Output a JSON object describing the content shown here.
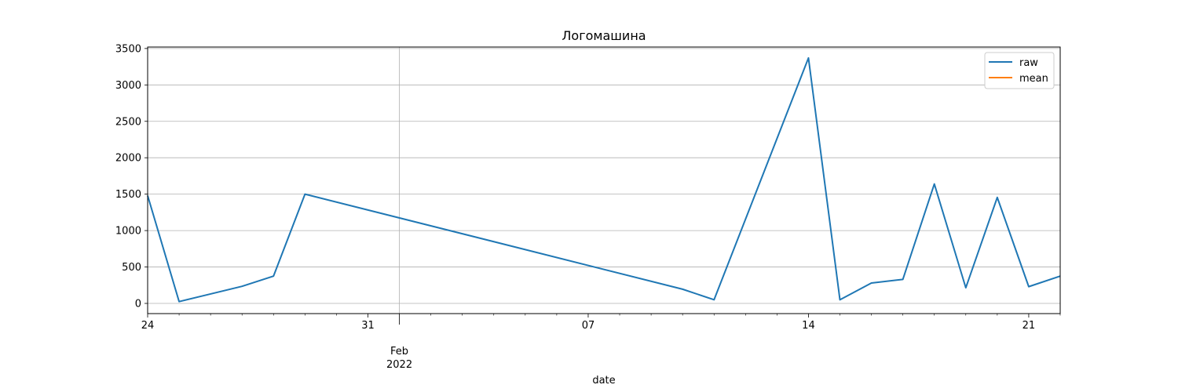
{
  "chart_data": {
    "type": "line",
    "title": "Логомашина",
    "xlabel": "date",
    "ylabel": "",
    "ylim": [
      -140,
      3520
    ],
    "xlim": [
      "2022-01-24",
      "2022-02-22"
    ],
    "grid": true,
    "legend_position": "top-right",
    "y_ticks": [
      0,
      500,
      1000,
      1500,
      2000,
      2500,
      3000,
      3500
    ],
    "x_major_ticks": [
      {
        "date": "2022-01-24",
        "label": "24",
        "sublabel": ""
      },
      {
        "date": "2022-01-31",
        "label": "31",
        "sublabel": ""
      },
      {
        "date": "2022-02-01",
        "label": "Feb",
        "sublabel": "2022"
      },
      {
        "date": "2022-02-07",
        "label": "07",
        "sublabel": ""
      },
      {
        "date": "2022-02-14",
        "label": "14",
        "sublabel": ""
      },
      {
        "date": "2022-02-21",
        "label": "21",
        "sublabel": ""
      }
    ],
    "x_gridline_dates": [
      "2022-02-01"
    ],
    "series": [
      {
        "name": "raw",
        "color": "#1f77b4",
        "points": [
          {
            "x": "2022-01-24",
            "y": 1480
          },
          {
            "x": "2022-01-25",
            "y": 25
          },
          {
            "x": "2022-01-27",
            "y": 235
          },
          {
            "x": "2022-01-28",
            "y": 375
          },
          {
            "x": "2022-01-29",
            "y": 1500
          },
          {
            "x": "2022-02-10",
            "y": 195
          },
          {
            "x": "2022-02-11",
            "y": 50
          },
          {
            "x": "2022-02-14",
            "y": 3370
          },
          {
            "x": "2022-02-15",
            "y": 50
          },
          {
            "x": "2022-02-16",
            "y": 280
          },
          {
            "x": "2022-02-17",
            "y": 330
          },
          {
            "x": "2022-02-18",
            "y": 1640
          },
          {
            "x": "2022-02-19",
            "y": 215
          },
          {
            "x": "2022-02-20",
            "y": 1455
          },
          {
            "x": "2022-02-21",
            "y": 230
          },
          {
            "x": "2022-02-22",
            "y": 375
          }
        ]
      },
      {
        "name": "mean",
        "color": "#ff7f0e",
        "points": []
      }
    ]
  }
}
